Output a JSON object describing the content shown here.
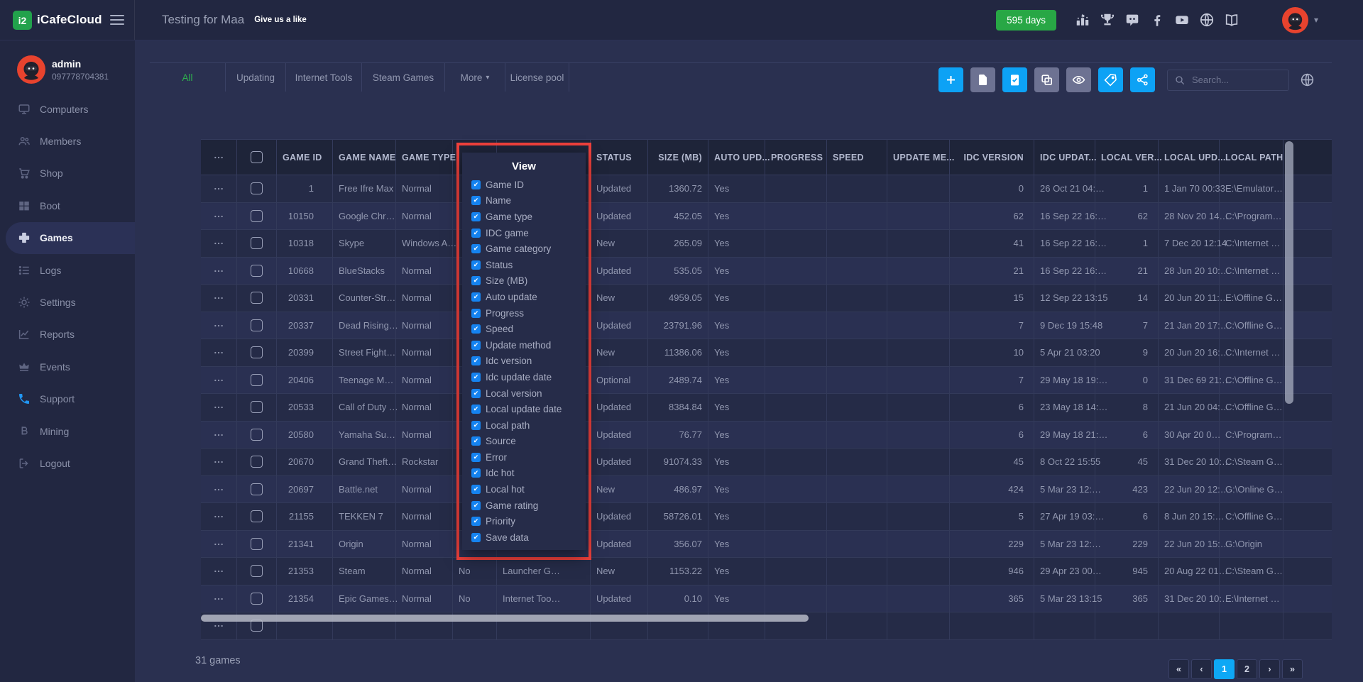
{
  "header": {
    "logo_text": "iCafeCloud",
    "title": "Testing for Maa",
    "like_link": "Give us a like",
    "days_badge": "595 days",
    "icons": [
      "podium-icon",
      "trophy-icon",
      "discord-icon",
      "facebook-icon",
      "youtube-icon",
      "globe-icon",
      "book-icon"
    ]
  },
  "sidebar": {
    "user": {
      "name": "admin",
      "id": "097778704381"
    },
    "items": [
      {
        "label": "Computers",
        "icon": "monitor-icon",
        "active": false
      },
      {
        "label": "Members",
        "icon": "users-icon",
        "active": false
      },
      {
        "label": "Shop",
        "icon": "cart-icon",
        "active": false
      },
      {
        "label": "Boot",
        "icon": "windows-icon",
        "active": false
      },
      {
        "label": "Games",
        "icon": "gamepad-icon",
        "active": true
      },
      {
        "label": "Logs",
        "icon": "list-icon",
        "active": false
      },
      {
        "label": "Settings",
        "icon": "gear-icon",
        "active": false
      },
      {
        "label": "Reports",
        "icon": "chart-icon",
        "active": false
      },
      {
        "label": "Events",
        "icon": "crown-icon",
        "active": false
      },
      {
        "label": "Support",
        "icon": "phone-icon",
        "active": false,
        "accent": true
      },
      {
        "label": "Mining",
        "icon": "bitcoin-icon",
        "active": false
      },
      {
        "label": "Logout",
        "icon": "logout-icon",
        "active": false
      }
    ]
  },
  "toolbar": {
    "tabs": [
      {
        "label": "All",
        "active": true
      },
      {
        "label": "Updating",
        "active": false
      },
      {
        "label": "Internet Tools",
        "active": false
      },
      {
        "label": "Steam Games",
        "active": false
      },
      {
        "label": "More",
        "active": false,
        "caret": true
      },
      {
        "label": "License pool",
        "active": false
      }
    ],
    "buttons": [
      {
        "name": "add-button",
        "icon": "plus-icon",
        "style": "blue"
      },
      {
        "name": "paste-button",
        "icon": "paste-icon",
        "style": "gray"
      },
      {
        "name": "clipboard-check-button",
        "icon": "clipboard-check-icon",
        "style": "blue"
      },
      {
        "name": "copy-button",
        "icon": "copy-icon",
        "style": "gray"
      },
      {
        "name": "eye-button",
        "icon": "eye-icon",
        "style": "gray"
      },
      {
        "name": "tag-button",
        "icon": "tag-icon",
        "style": "blue"
      },
      {
        "name": "share-button",
        "icon": "share-icon",
        "style": "blue"
      }
    ],
    "search": {
      "placeholder": "Search..."
    }
  },
  "view_popup": {
    "title": "View",
    "options": [
      {
        "label": "Game ID",
        "checked": true
      },
      {
        "label": "Name",
        "checked": true
      },
      {
        "label": "Game type",
        "checked": true
      },
      {
        "label": "IDC game",
        "checked": true
      },
      {
        "label": "Game category",
        "checked": true
      },
      {
        "label": "Status",
        "checked": true
      },
      {
        "label": "Size (MB)",
        "checked": true
      },
      {
        "label": "Auto update",
        "checked": true
      },
      {
        "label": "Progress",
        "checked": true
      },
      {
        "label": "Speed",
        "checked": true
      },
      {
        "label": "Update method",
        "checked": true
      },
      {
        "label": "Idc version",
        "checked": true
      },
      {
        "label": "Idc update date",
        "checked": true
      },
      {
        "label": "Local version",
        "checked": true
      },
      {
        "label": "Local update date",
        "checked": true
      },
      {
        "label": "Local path",
        "checked": true
      },
      {
        "label": "Source",
        "checked": true
      },
      {
        "label": "Error",
        "checked": true
      },
      {
        "label": "Idc hot",
        "checked": true
      },
      {
        "label": "Local hot",
        "checked": true
      },
      {
        "label": "Game rating",
        "checked": true
      },
      {
        "label": "Priority",
        "checked": true
      },
      {
        "label": "Save data",
        "checked": true
      }
    ]
  },
  "table": {
    "columns": [
      {
        "key": "actions",
        "label": "",
        "type": "actions",
        "width": 51,
        "align": "ac"
      },
      {
        "key": "select",
        "label": "",
        "type": "checkbox",
        "width": 56,
        "align": "ac"
      },
      {
        "key": "game_id",
        "label": "GAME ID",
        "width": 79,
        "align": "ar"
      },
      {
        "key": "game_name",
        "label": "GAME NAME",
        "width": 89,
        "align": "al"
      },
      {
        "key": "game_type",
        "label": "GAME TYPE",
        "width": 80,
        "align": "al"
      },
      {
        "key": "idc_game",
        "label": "",
        "width": 62,
        "align": "al"
      },
      {
        "key": "game_category",
        "label": "",
        "width": 132,
        "align": "al"
      },
      {
        "key": "status",
        "label": "STATUS",
        "width": 81,
        "align": "al"
      },
      {
        "key": "size_mb",
        "label": "SIZE (MB)",
        "width": 85,
        "align": "ar"
      },
      {
        "key": "auto_update",
        "label": "AUTO UPD...",
        "width": 80,
        "align": "al"
      },
      {
        "key": "progress",
        "label": "PROGRESS",
        "width": 87,
        "align": "al"
      },
      {
        "key": "speed",
        "label": "SPEED",
        "width": 85,
        "align": "al"
      },
      {
        "key": "update_method",
        "label": "UPDATE ME...",
        "width": 88,
        "align": "al"
      },
      {
        "key": "idc_version",
        "label": "IDC VERSION",
        "width": 119,
        "align": "ar"
      },
      {
        "key": "idc_update_date",
        "label": "IDC UPDAT...",
        "width": 86,
        "align": "al"
      },
      {
        "key": "local_version",
        "label": "LOCAL VER...",
        "width": 89,
        "align": "ar"
      },
      {
        "key": "local_update_date",
        "label": "LOCAL UPD...",
        "width": 86,
        "align": "al"
      },
      {
        "key": "local_path",
        "label": "LOCAL PATH",
        "width": 90,
        "align": "al"
      },
      {
        "key": "spacer",
        "label": "",
        "width": 68,
        "align": "al"
      }
    ],
    "rows": [
      {
        "game_id": "1",
        "game_name": "Free Ifre Max",
        "game_type": "Normal",
        "idc_game": "",
        "game_category": "",
        "status": "Updated",
        "size_mb": "1360.72",
        "auto_update": "Yes",
        "progress": "",
        "speed": "",
        "update_method": "",
        "idc_version": "0",
        "idc_update_date": "26 Oct 21 04:…",
        "local_version": "1",
        "local_update_date": "1 Jan 70 00:33",
        "local_path": "E:\\Emulator…",
        "spacer": ""
      },
      {
        "game_id": "10150",
        "game_name": "Google Chr…",
        "game_type": "Normal",
        "idc_game": "",
        "game_category": "",
        "status": "Updated",
        "size_mb": "452.05",
        "auto_update": "Yes",
        "progress": "",
        "speed": "",
        "update_method": "",
        "idc_version": "62",
        "idc_update_date": "16 Sep 22 16:…",
        "local_version": "62",
        "local_update_date": "28 Nov 20 14…",
        "local_path": "C:\\Program…",
        "spacer": ""
      },
      {
        "game_id": "10318",
        "game_name": "Skype",
        "game_type": "Windows A…",
        "idc_game": "",
        "game_category": "",
        "status": "New",
        "size_mb": "265.09",
        "auto_update": "Yes",
        "progress": "",
        "speed": "",
        "update_method": "",
        "idc_version": "41",
        "idc_update_date": "16 Sep 22 16:…",
        "local_version": "1",
        "local_update_date": "7 Dec 20 12:14",
        "local_path": "C:\\Internet …",
        "spacer": ""
      },
      {
        "game_id": "10668",
        "game_name": "BlueStacks",
        "game_type": "Normal",
        "idc_game": "",
        "game_category": "",
        "status": "Updated",
        "size_mb": "535.05",
        "auto_update": "Yes",
        "progress": "",
        "speed": "",
        "update_method": "",
        "idc_version": "21",
        "idc_update_date": "16 Sep 22 16:…",
        "local_version": "21",
        "local_update_date": "28 Jun 20 10:…",
        "local_path": "C:\\Internet …",
        "spacer": ""
      },
      {
        "game_id": "20331",
        "game_name": "Counter-Str…",
        "game_type": "Normal",
        "idc_game": "",
        "game_category": "",
        "status": "New",
        "size_mb": "4959.05",
        "auto_update": "Yes",
        "progress": "",
        "speed": "",
        "update_method": "",
        "idc_version": "15",
        "idc_update_date": "12 Sep 22 13:15",
        "local_version": "14",
        "local_update_date": "20 Jun 20 11:…",
        "local_path": "E:\\Offline G…",
        "spacer": ""
      },
      {
        "game_id": "20337",
        "game_name": "Dead Rising…",
        "game_type": "Normal",
        "idc_game": "",
        "game_category": "",
        "status": "Updated",
        "size_mb": "23791.96",
        "auto_update": "Yes",
        "progress": "",
        "speed": "",
        "update_method": "",
        "idc_version": "7",
        "idc_update_date": "9 Dec 19 15:48",
        "local_version": "7",
        "local_update_date": "21 Jan 20 17:…",
        "local_path": "C:\\Offline G…",
        "spacer": ""
      },
      {
        "game_id": "20399",
        "game_name": "Street Fight…",
        "game_type": "Normal",
        "idc_game": "",
        "game_category": "",
        "status": "New",
        "size_mb": "11386.06",
        "auto_update": "Yes",
        "progress": "",
        "speed": "",
        "update_method": "",
        "idc_version": "10",
        "idc_update_date": "5 Apr 21 03:20",
        "local_version": "9",
        "local_update_date": "20 Jun 20 16:…",
        "local_path": "C:\\Internet …",
        "spacer": ""
      },
      {
        "game_id": "20406",
        "game_name": "Teenage M…",
        "game_type": "Normal",
        "idc_game": "",
        "game_category": "",
        "status": "Optional",
        "size_mb": "2489.74",
        "auto_update": "Yes",
        "progress": "",
        "speed": "",
        "update_method": "",
        "idc_version": "7",
        "idc_update_date": "29 May 18 19:…",
        "local_version": "0",
        "local_update_date": "31 Dec 69 21:…",
        "local_path": "C:\\Offline G…",
        "spacer": ""
      },
      {
        "game_id": "20533",
        "game_name": "Call of Duty …",
        "game_type": "Normal",
        "idc_game": "",
        "game_category": "",
        "status": "Updated",
        "size_mb": "8384.84",
        "auto_update": "Yes",
        "progress": "",
        "speed": "",
        "update_method": "",
        "idc_version": "6",
        "idc_update_date": "23 May 18 14:…",
        "local_version": "8",
        "local_update_date": "21 Jun 20 04:…",
        "local_path": "C:\\Offline G…",
        "spacer": ""
      },
      {
        "game_id": "20580",
        "game_name": "Yamaha Su…",
        "game_type": "Normal",
        "idc_game": "",
        "game_category": "",
        "status": "Updated",
        "size_mb": "76.77",
        "auto_update": "Yes",
        "progress": "",
        "speed": "",
        "update_method": "",
        "idc_version": "6",
        "idc_update_date": "29 May 18 21:…",
        "local_version": "6",
        "local_update_date": "30 Apr 20 0…",
        "local_path": "C:\\Program…",
        "spacer": ""
      },
      {
        "game_id": "20670",
        "game_name": "Grand Theft…",
        "game_type": "Rockstar",
        "idc_game": "",
        "game_category": "",
        "status": "Updated",
        "size_mb": "91074.33",
        "auto_update": "Yes",
        "progress": "",
        "speed": "",
        "update_method": "",
        "idc_version": "45",
        "idc_update_date": "8 Oct 22 15:55",
        "local_version": "45",
        "local_update_date": "31 Dec 20 10:…",
        "local_path": "C:\\Steam G…",
        "spacer": ""
      },
      {
        "game_id": "20697",
        "game_name": "Battle.net",
        "game_type": "Normal",
        "idc_game": "",
        "game_category": "",
        "status": "New",
        "size_mb": "486.97",
        "auto_update": "Yes",
        "progress": "",
        "speed": "",
        "update_method": "",
        "idc_version": "424",
        "idc_update_date": "5 Mar 23 12:…",
        "local_version": "423",
        "local_update_date": "22 Jun 20 12:…",
        "local_path": "G:\\Online G…",
        "spacer": ""
      },
      {
        "game_id": "21155",
        "game_name": "TEKKEN 7",
        "game_type": "Normal",
        "idc_game": "",
        "game_category": "",
        "status": "Updated",
        "size_mb": "58726.01",
        "auto_update": "Yes",
        "progress": "",
        "speed": "",
        "update_method": "",
        "idc_version": "5",
        "idc_update_date": "27 Apr 19 03:…",
        "local_version": "6",
        "local_update_date": "8 Jun 20 15:…",
        "local_path": "C:\\Offline G…",
        "spacer": ""
      },
      {
        "game_id": "21341",
        "game_name": "Origin",
        "game_type": "Normal",
        "idc_game": "",
        "game_category": "",
        "status": "Updated",
        "size_mb": "356.07",
        "auto_update": "Yes",
        "progress": "",
        "speed": "",
        "update_method": "",
        "idc_version": "229",
        "idc_update_date": "5 Mar 23 12:…",
        "local_version": "229",
        "local_update_date": "22 Jun 20 15:…",
        "local_path": "G:\\Origin",
        "spacer": ""
      },
      {
        "game_id": "21353",
        "game_name": "Steam",
        "game_type": "Normal",
        "idc_game": "No",
        "game_category": "Launcher G…",
        "status": "New",
        "size_mb": "1153.22",
        "auto_update": "Yes",
        "progress": "",
        "speed": "",
        "update_method": "",
        "idc_version": "946",
        "idc_update_date": "29 Apr 23 00…",
        "local_version": "945",
        "local_update_date": "20 Aug 22 01…",
        "local_path": "C:\\Steam G…",
        "spacer": ""
      },
      {
        "game_id": "21354",
        "game_name": "Epic Games…",
        "game_type": "Normal",
        "idc_game": "No",
        "game_category": "Internet Too…",
        "status": "Updated",
        "size_mb": "0.10",
        "auto_update": "Yes",
        "progress": "",
        "speed": "",
        "update_method": "",
        "idc_version": "365",
        "idc_update_date": "5 Mar 23 13:15",
        "local_version": "365",
        "local_update_date": "31 Dec 20 10:…",
        "local_path": "E:\\Internet …",
        "spacer": ""
      },
      {
        "game_id": "",
        "game_name": "",
        "game_type": "",
        "idc_game": "",
        "game_category": "",
        "status": "",
        "size_mb": "",
        "auto_update": "",
        "progress": "",
        "speed": "",
        "update_method": "",
        "idc_version": "",
        "idc_update_date": "",
        "local_version": "",
        "local_update_date": "",
        "local_path": "",
        "spacer": ""
      }
    ]
  },
  "footer": {
    "count_label": "31 games",
    "pagination": [
      "«",
      "‹",
      "1",
      "2",
      "›",
      "»"
    ],
    "active_page": "1"
  }
}
